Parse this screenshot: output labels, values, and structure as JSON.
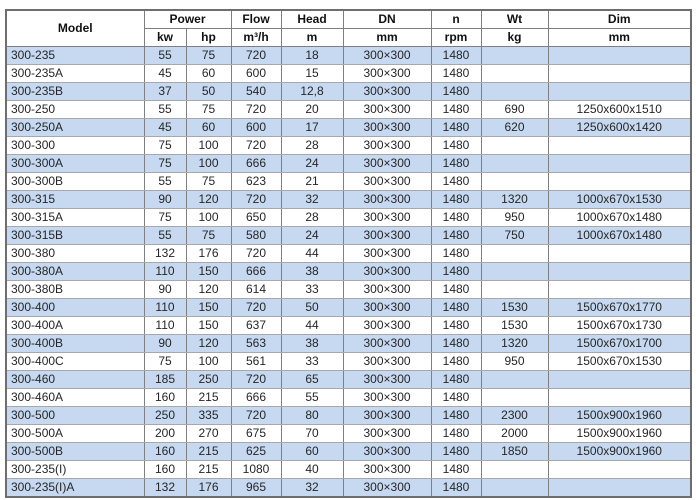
{
  "colors": {
    "row_highlight": "#c6d9f1",
    "row_plain": "#ffffff",
    "grid_vertical": "#7f7f7f",
    "grid_horizontal": "#a8a8a8",
    "outer_border": "#6e6e6e",
    "text": "#262626"
  },
  "table": {
    "headers": {
      "model": "Model",
      "power": "Power",
      "power_kw": "kw",
      "power_hp": "hp",
      "flow": "Flow",
      "flow_unit": "m³/h",
      "head": "Head",
      "head_unit": "m",
      "dn": "DN",
      "dn_unit": "mm",
      "n": "n",
      "n_unit": "rpm",
      "wt": "Wt",
      "wt_unit": "kg",
      "dim": "Dim",
      "dim_unit": "mm"
    },
    "columns": [
      "model",
      "kw",
      "hp",
      "flow",
      "head",
      "dn",
      "rpm",
      "wt",
      "dim"
    ],
    "rows": [
      [
        "300-235",
        "55",
        "75",
        "720",
        "18",
        "300×300",
        "1480",
        "",
        ""
      ],
      [
        "300-235A",
        "45",
        "60",
        "600",
        "15",
        "300×300",
        "1480",
        "",
        ""
      ],
      [
        "300-235B",
        "37",
        "50",
        "540",
        "12,8",
        "300×300",
        "1480",
        "",
        ""
      ],
      [
        "300-250",
        "55",
        "75",
        "720",
        "20",
        "300×300",
        "1480",
        "690",
        "1250x600x1510"
      ],
      [
        "300-250A",
        "45",
        "60",
        "600",
        "17",
        "300×300",
        "1480",
        "620",
        "1250x600x1420"
      ],
      [
        "300-300",
        "75",
        "100",
        "720",
        "28",
        "300×300",
        "1480",
        "",
        ""
      ],
      [
        "300-300A",
        "75",
        "100",
        "666",
        "24",
        "300×300",
        "1480",
        "",
        ""
      ],
      [
        "300-300B",
        "55",
        "75",
        "623",
        "21",
        "300×300",
        "1480",
        "",
        ""
      ],
      [
        "300-315",
        "90",
        "120",
        "720",
        "32",
        "300×300",
        "1480",
        "1320",
        "1000x670x1530"
      ],
      [
        "300-315A",
        "75",
        "100",
        "650",
        "28",
        "300×300",
        "1480",
        "950",
        "1000x670x1480"
      ],
      [
        "300-315B",
        "55",
        "75",
        "580",
        "24",
        "300×300",
        "1480",
        "750",
        "1000x670x1480"
      ],
      [
        "300-380",
        "132",
        "176",
        "720",
        "44",
        "300×300",
        "1480",
        "",
        ""
      ],
      [
        "300-380A",
        "110",
        "150",
        "666",
        "38",
        "300×300",
        "1480",
        "",
        ""
      ],
      [
        "300-380B",
        "90",
        "120",
        "614",
        "33",
        "300×300",
        "1480",
        "",
        ""
      ],
      [
        "300-400",
        "110",
        "150",
        "720",
        "50",
        "300×300",
        "1480",
        "1530",
        "1500x670x1770"
      ],
      [
        "300-400A",
        "110",
        "150",
        "637",
        "44",
        "300×300",
        "1480",
        "1530",
        "1500x670x1730"
      ],
      [
        "300-400B",
        "90",
        "120",
        "563",
        "38",
        "300×300",
        "1480",
        "1320",
        "1500x670x1700"
      ],
      [
        "300-400C",
        "75",
        "100",
        "561",
        "33",
        "300×300",
        "1480",
        "950",
        "1500x670x1530"
      ],
      [
        "300-460",
        "185",
        "250",
        "720",
        "65",
        "300×300",
        "1480",
        "",
        ""
      ],
      [
        "300-460A",
        "160",
        "215",
        "666",
        "55",
        "300×300",
        "1480",
        "",
        ""
      ],
      [
        "300-500",
        "250",
        "335",
        "720",
        "80",
        "300×300",
        "1480",
        "2300",
        "1500x900x1960"
      ],
      [
        "300-500A",
        "200",
        "270",
        "675",
        "70",
        "300×300",
        "1480",
        "2000",
        "1500x900x1960"
      ],
      [
        "300-500B",
        "160",
        "215",
        "625",
        "60",
        "300×300",
        "1480",
        "1850",
        "1500x900x1960"
      ],
      [
        "300-235(I)",
        "160",
        "215",
        "1080",
        "40",
        "300×300",
        "1480",
        "",
        ""
      ],
      [
        "300-235(I)A",
        "132",
        "176",
        "965",
        "32",
        "300×300",
        "1480",
        "",
        ""
      ]
    ]
  }
}
